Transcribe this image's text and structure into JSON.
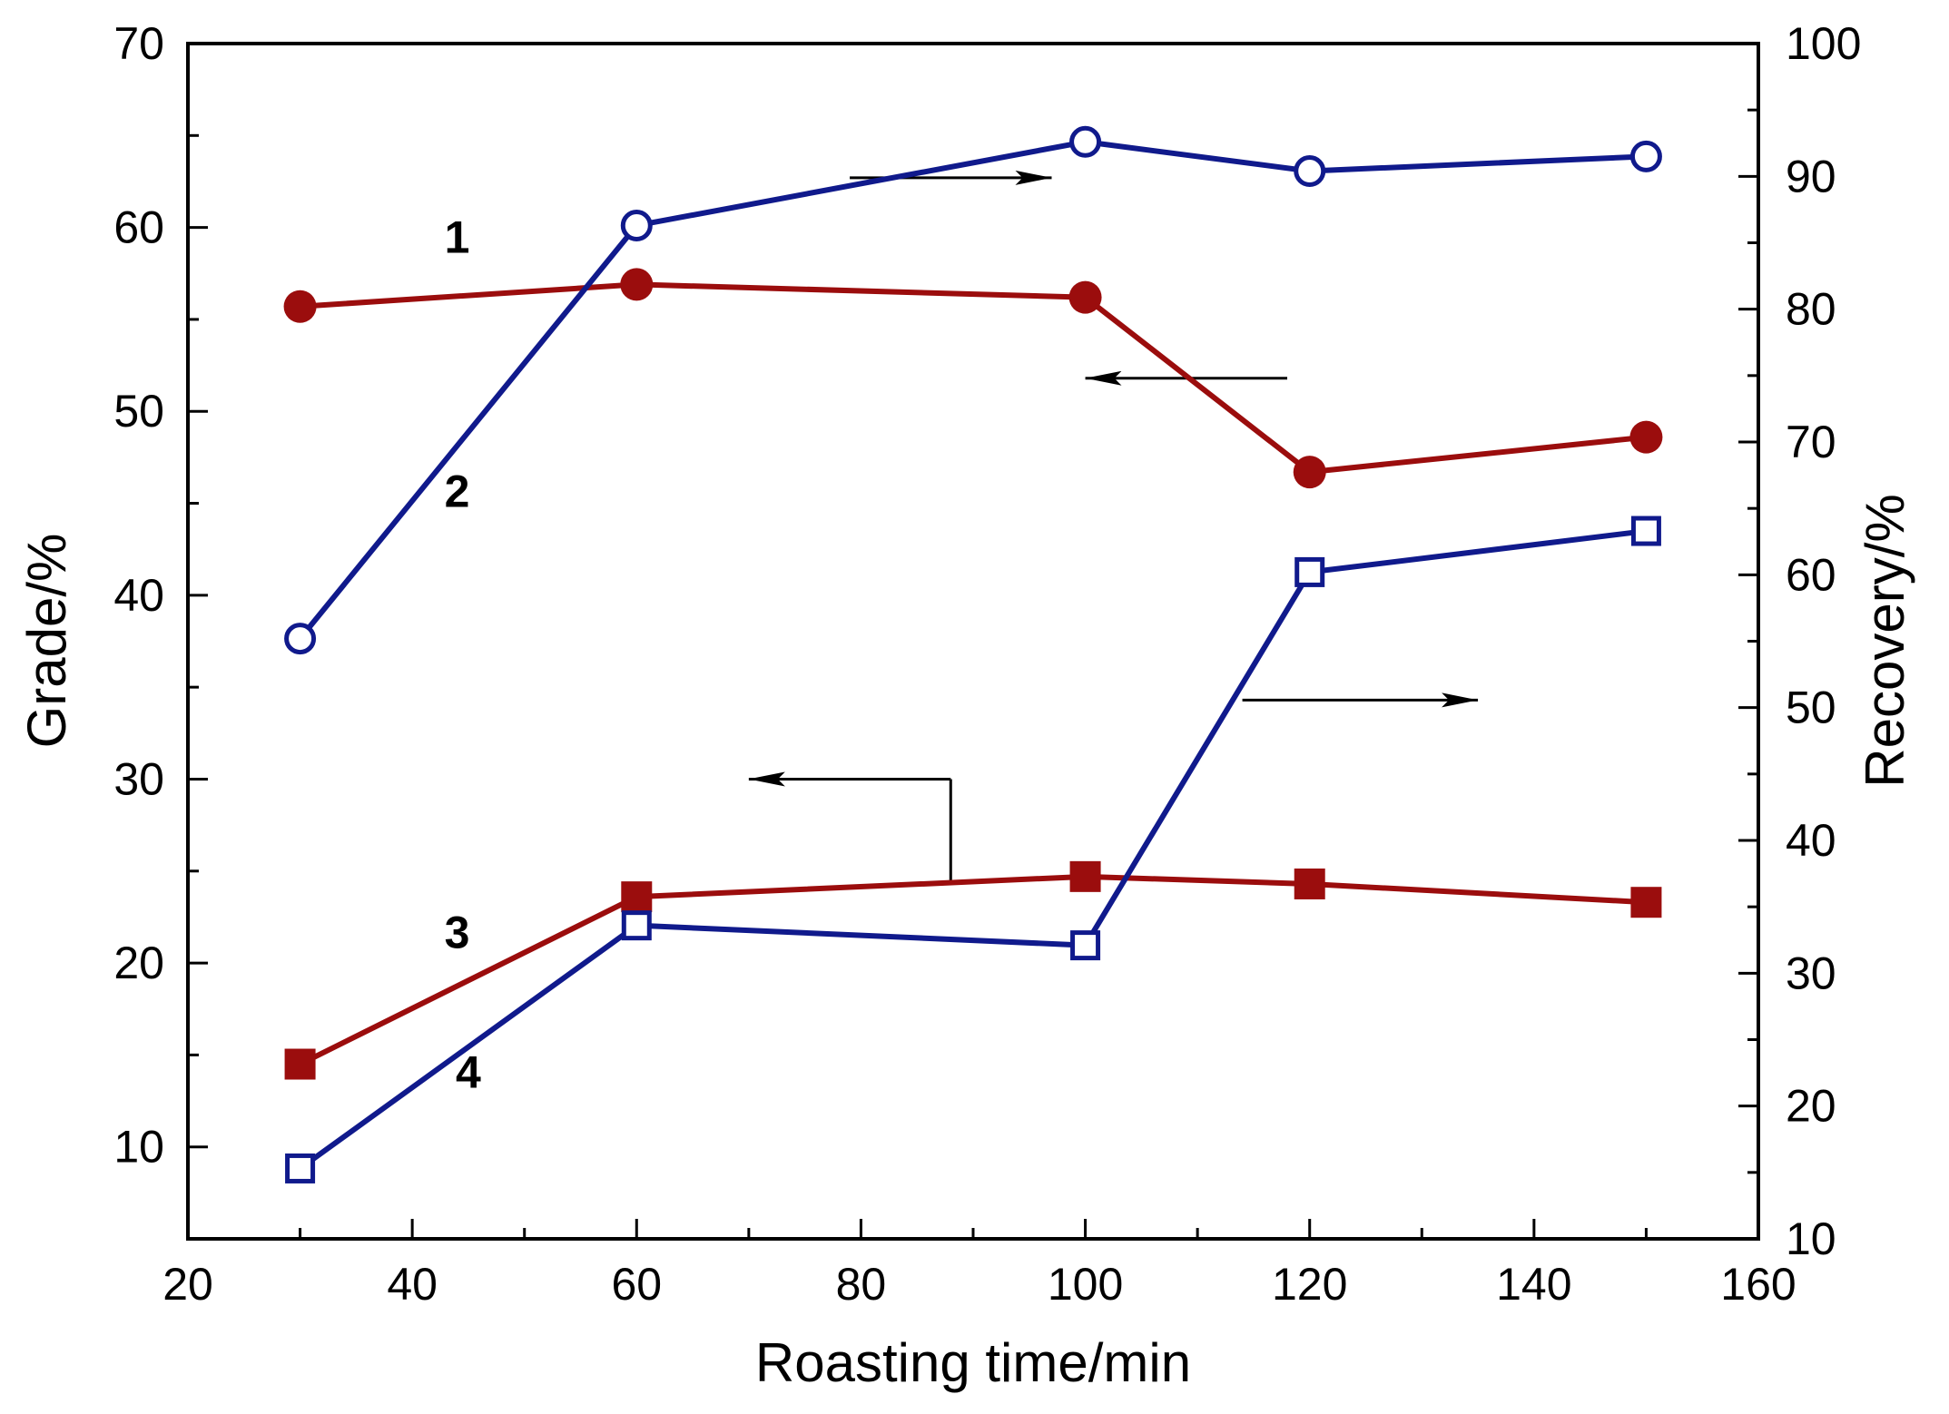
{
  "chart_data": {
    "type": "line",
    "title": "",
    "xlabel": "Roasting time/min",
    "ylabel": "Grade/%",
    "y2label": "Recovery/%",
    "xlim": [
      20,
      160
    ],
    "ylim": [
      5,
      70
    ],
    "y2lim": [
      10,
      100
    ],
    "xticks": [
      "20",
      "40",
      "60",
      "80",
      "100",
      "120",
      "140",
      "160"
    ],
    "yticks": [
      "10",
      "20",
      "30",
      "40",
      "50",
      "60",
      "70"
    ],
    "y2ticks": [
      "10",
      "20",
      "30",
      "40",
      "50",
      "60",
      "70",
      "80",
      "90",
      "100"
    ],
    "grid": false,
    "series": [
      {
        "name": "1",
        "label": "1",
        "axis": "left",
        "marker": "filled-circle",
        "color": "#9b0d0d",
        "x": [
          30,
          60,
          100,
          120,
          150
        ],
        "values": [
          55.7,
          56.9,
          56.2,
          46.7,
          48.6
        ]
      },
      {
        "name": "2",
        "label": "2",
        "axis": "right",
        "marker": "open-circle",
        "color": "#101a8c",
        "x": [
          30,
          60,
          100,
          120,
          150
        ],
        "values": [
          55.2,
          86.3,
          92.6,
          90.4,
          91.5
        ]
      },
      {
        "name": "3",
        "label": "3",
        "axis": "left",
        "marker": "filled-square",
        "color": "#9b0d0d",
        "x": [
          30,
          60,
          100,
          120,
          150
        ],
        "values": [
          14.5,
          23.6,
          24.7,
          24.3,
          23.3
        ]
      },
      {
        "name": "4",
        "label": "4",
        "axis": "right",
        "marker": "open-square",
        "color": "#101a8c",
        "x": [
          30,
          60,
          100,
          120,
          150
        ],
        "values": [
          15.3,
          33.6,
          32.1,
          60.2,
          63.3
        ]
      }
    ],
    "annotations": [
      {
        "name": "arrow-curve-2-to-recovery",
        "direction": "right",
        "x1": 79,
        "x2": 97,
        "y": 62.7
      },
      {
        "name": "arrow-curve-1-to-grade",
        "direction": "left",
        "x1": 118,
        "x2": 100,
        "y": 51.8
      },
      {
        "name": "arrow-curve-4-to-recovery",
        "direction": "right",
        "x1": 114,
        "x2": 135,
        "y": 34.3
      },
      {
        "name": "arrow-curve-3-to-grade",
        "direction": "left",
        "x1": 88,
        "x2": 70,
        "y": 30.0,
        "leader_y": 24.3
      }
    ],
    "label_positions": [
      {
        "series": "1",
        "x": 44,
        "y": 59.5
      },
      {
        "series": "2",
        "x": 44,
        "y": 45.7
      },
      {
        "series": "3",
        "x": 44,
        "y": 21.7
      },
      {
        "series": "4",
        "x": 45,
        "y": 14.1
      }
    ]
  }
}
